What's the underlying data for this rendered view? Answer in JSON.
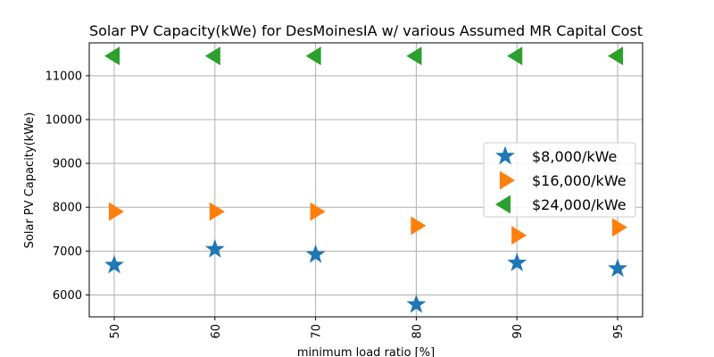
{
  "chart_data": {
    "type": "scatter",
    "title": "Solar PV Capacity(kWe) for DesMoinesIA w/ various Assumed MR Capital Cost",
    "xlabel": "minimum load ratio [%]",
    "ylabel": "Solar PV Capacity(kWe)",
    "categories": [
      "50",
      "60",
      "70",
      "80",
      "90",
      "95"
    ],
    "yticks": [
      6000,
      7000,
      8000,
      9000,
      10000,
      11000
    ],
    "ylim": [
      5500,
      11750
    ],
    "grid": true,
    "legend_position": "center-right",
    "series": [
      {
        "name": "$8,000/kWe",
        "marker": "star",
        "color": "#1f77b4",
        "values": [
          6680,
          7040,
          6920,
          5780,
          6730,
          6600
        ]
      },
      {
        "name": "$16,000/kWe",
        "marker": "triangle-right",
        "color": "#ff7f0e",
        "values": [
          7900,
          7900,
          7900,
          7580,
          7360,
          7540
        ]
      },
      {
        "name": "$24,000/kWe",
        "marker": "triangle-left",
        "color": "#2ca02c",
        "values": [
          11450,
          11450,
          11450,
          11450,
          11450,
          11450
        ]
      }
    ]
  }
}
